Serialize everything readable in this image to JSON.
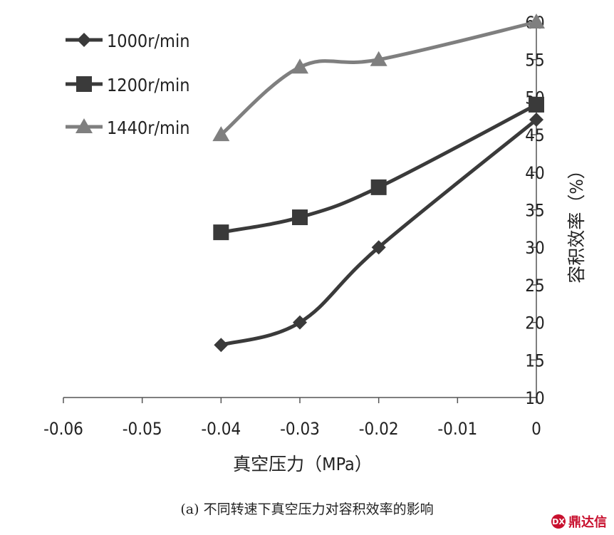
{
  "chart_data": {
    "type": "line",
    "caption": "(a) 不同转速下真空压力对容积效率的影响",
    "xlabel": "真空压力（MPa）",
    "ylabel": "容积效率（%）",
    "x_ticks": [
      "-0.06",
      "-0.05",
      "-0.04",
      "-0.03",
      "-0.02",
      "-0.01",
      "0"
    ],
    "y_ticks": [
      "10",
      "15",
      "20",
      "25",
      "30",
      "35",
      "40",
      "45",
      "50",
      "55",
      "60"
    ],
    "xlim": [
      -0.06,
      0
    ],
    "ylim": [
      10,
      60
    ],
    "grid": false,
    "legend_position": "top-left",
    "x": [
      -0.04,
      -0.03,
      -0.02,
      0
    ],
    "series": [
      {
        "name": "1000r/min",
        "marker": "diamond",
        "color": "#3a3a3a",
        "values": [
          17,
          20,
          30,
          47
        ]
      },
      {
        "name": "1200r/min",
        "marker": "square",
        "color": "#3a3a3a",
        "values": [
          32,
          34,
          38,
          49
        ]
      },
      {
        "name": "1440r/min",
        "marker": "triangle",
        "color": "#7f7f7f",
        "values": [
          45,
          54,
          55,
          60
        ]
      }
    ]
  },
  "watermark": {
    "text": "鼎达信",
    "logo_text": "DX"
  }
}
